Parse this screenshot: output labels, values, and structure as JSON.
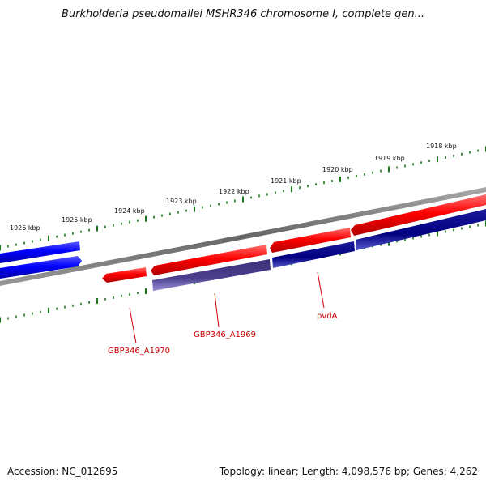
{
  "title": "Burkholderia pseudomallei MSHR346 chromosome I, complete gen...",
  "footer": {
    "accession": "Accession: NC_012695",
    "summary": "Topology: linear; Length: 4,098,576 bp; Genes: 4,262"
  },
  "scale": {
    "labels": [
      "1926 kbp",
      "1925 kbp",
      "1924 kbp",
      "1923 kbp",
      "1922 kbp",
      "1921 kbp",
      "1920 kbp",
      "1919 kbp",
      "1918 kbp"
    ]
  },
  "gene_labels": {
    "a1970": "GBP346_A1970",
    "a1969": "GBP346_A1969",
    "pvda": "pvdA"
  },
  "colors": {
    "forward_gene": "#ff0000",
    "reverse_gene": "#000080",
    "reverse_gene_light": "#4a3f8c",
    "other_gene": "#0000ff",
    "backbone": "#777777",
    "ticks": "#1a7a1a",
    "label_text": "#cc0000"
  }
}
